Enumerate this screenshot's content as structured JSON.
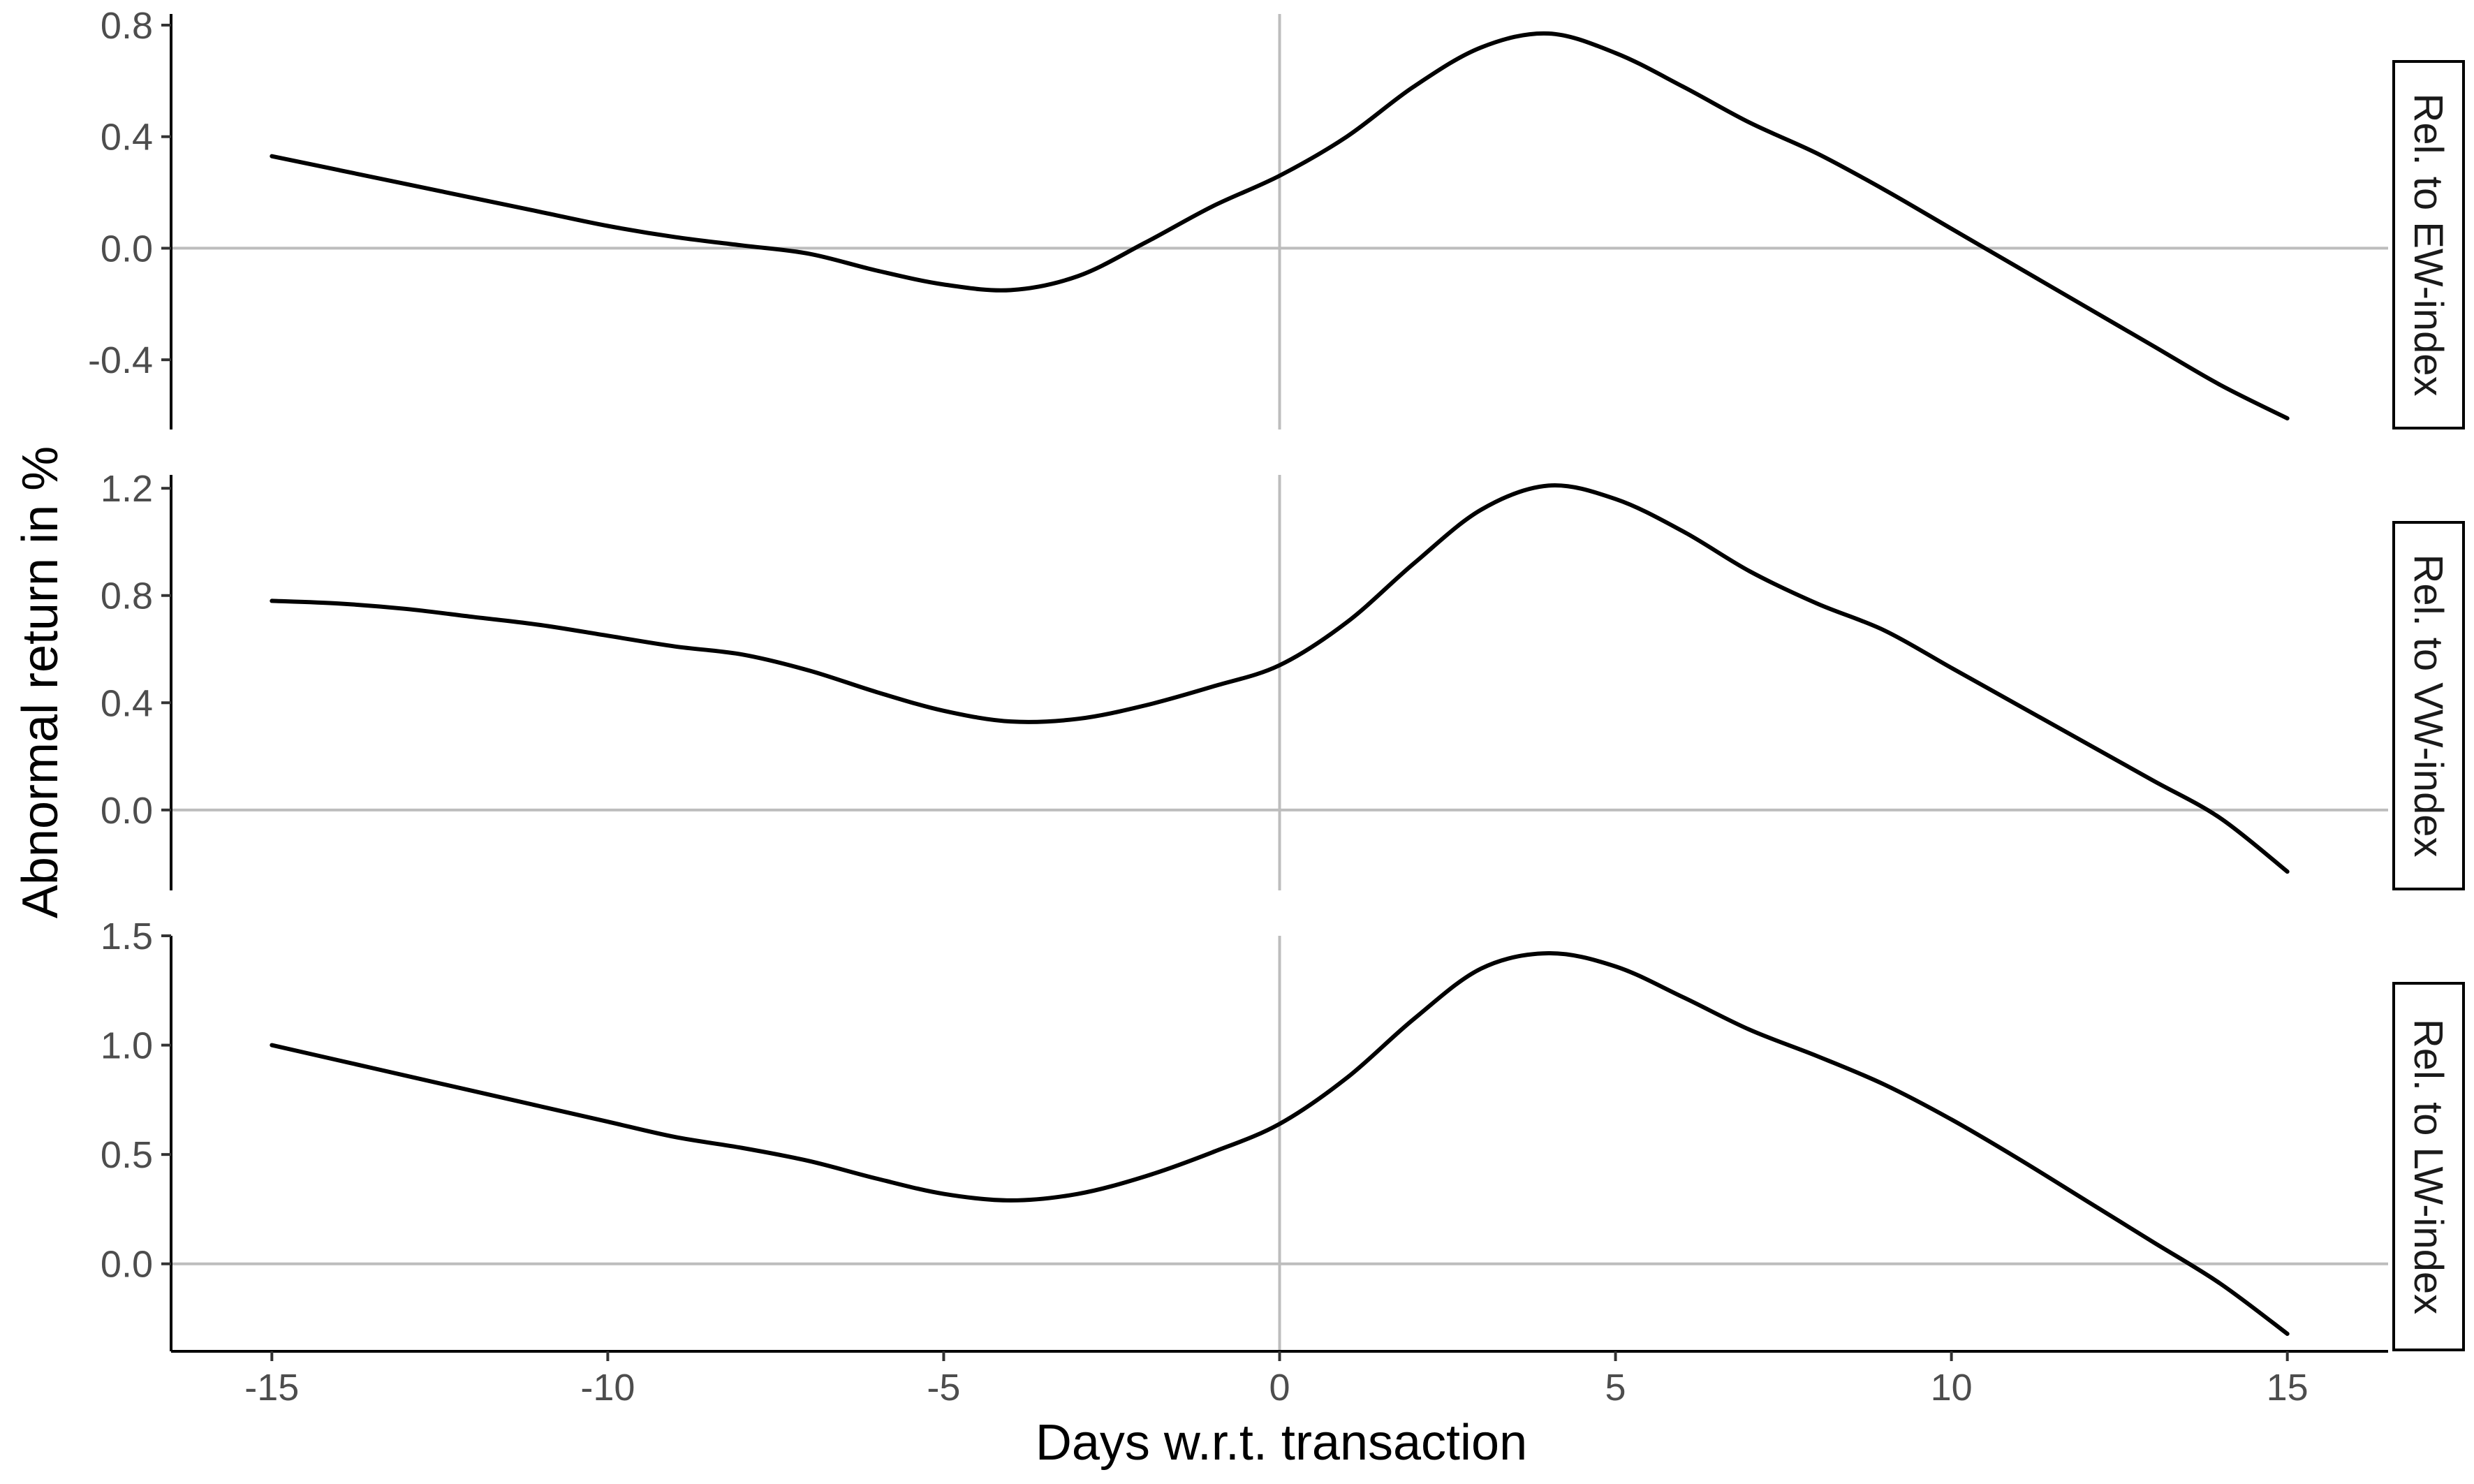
{
  "chart_data": {
    "type": "line",
    "xlabel": "Days w.r.t. transaction",
    "ylabel": "Abnormal return in %",
    "xlim": [
      -16.5,
      16.5
    ],
    "x_ticks": [
      -15,
      -10,
      -5,
      0,
      5,
      10,
      15
    ],
    "x_tick_labels": [
      "-15",
      "-10",
      "-5",
      "0",
      "5",
      "10",
      "15"
    ],
    "reference_lines": {
      "x": 0,
      "y": 0
    },
    "grid": false,
    "line_color": "#000000",
    "reference_line_color": "#bdbdbd",
    "panels": [
      {
        "strip_label": "Rel. to EW-index",
        "ylim": [
          -0.65,
          0.84
        ],
        "y_ticks": [
          -0.4,
          0.0,
          0.4,
          0.8
        ],
        "y_tick_labels": [
          "-0.4",
          "0.0",
          "0.4",
          "0.8"
        ],
        "x": [
          -15,
          -14,
          -13,
          -12,
          -11,
          -10,
          -9,
          -8,
          -7,
          -6,
          -5,
          -4,
          -3,
          -2,
          -1,
          0,
          1,
          2,
          3,
          4,
          5,
          6,
          7,
          8,
          9,
          10,
          11,
          12,
          13,
          14,
          15
        ],
        "y": [
          0.33,
          0.28,
          0.23,
          0.18,
          0.13,
          0.08,
          0.04,
          0.01,
          -0.02,
          -0.08,
          -0.13,
          -0.15,
          -0.1,
          0.02,
          0.15,
          0.26,
          0.4,
          0.58,
          0.72,
          0.77,
          0.7,
          0.58,
          0.45,
          0.34,
          0.21,
          0.07,
          -0.07,
          -0.21,
          -0.35,
          -0.49,
          -0.61
        ]
      },
      {
        "strip_label": "Rel. to VW-index",
        "ylim": [
          -0.3,
          1.25
        ],
        "y_ticks": [
          0.0,
          0.4,
          0.8,
          1.2
        ],
        "y_tick_labels": [
          "0.0",
          "0.4",
          "0.8",
          "1.2"
        ],
        "x": [
          -15,
          -14,
          -13,
          -12,
          -11,
          -10,
          -9,
          -8,
          -7,
          -6,
          -5,
          -4,
          -3,
          -2,
          -1,
          0,
          1,
          2,
          3,
          4,
          5,
          6,
          7,
          8,
          9,
          10,
          11,
          12,
          13,
          14,
          15
        ],
        "y": [
          0.78,
          0.77,
          0.75,
          0.72,
          0.69,
          0.65,
          0.61,
          0.58,
          0.52,
          0.44,
          0.37,
          0.33,
          0.34,
          0.39,
          0.46,
          0.54,
          0.7,
          0.92,
          1.12,
          1.21,
          1.16,
          1.04,
          0.89,
          0.77,
          0.67,
          0.53,
          0.39,
          0.25,
          0.11,
          -0.03,
          -0.23
        ]
      },
      {
        "strip_label": "Rel. to LW-index",
        "ylim": [
          -0.4,
          1.5
        ],
        "y_ticks": [
          0.0,
          0.5,
          1.0,
          1.5
        ],
        "y_tick_labels": [
          "0.0",
          "0.5",
          "1.0",
          "1.5"
        ],
        "x": [
          -15,
          -14,
          -13,
          -12,
          -11,
          -10,
          -9,
          -8,
          -7,
          -6,
          -5,
          -4,
          -3,
          -2,
          -1,
          0,
          1,
          2,
          3,
          4,
          5,
          6,
          7,
          8,
          9,
          10,
          11,
          12,
          13,
          14,
          15
        ],
        "y": [
          1.0,
          0.93,
          0.86,
          0.79,
          0.72,
          0.65,
          0.58,
          0.53,
          0.47,
          0.39,
          0.32,
          0.29,
          0.32,
          0.4,
          0.51,
          0.64,
          0.85,
          1.12,
          1.35,
          1.42,
          1.36,
          1.22,
          1.07,
          0.95,
          0.82,
          0.66,
          0.48,
          0.29,
          0.1,
          -0.09,
          -0.32
        ]
      }
    ]
  }
}
